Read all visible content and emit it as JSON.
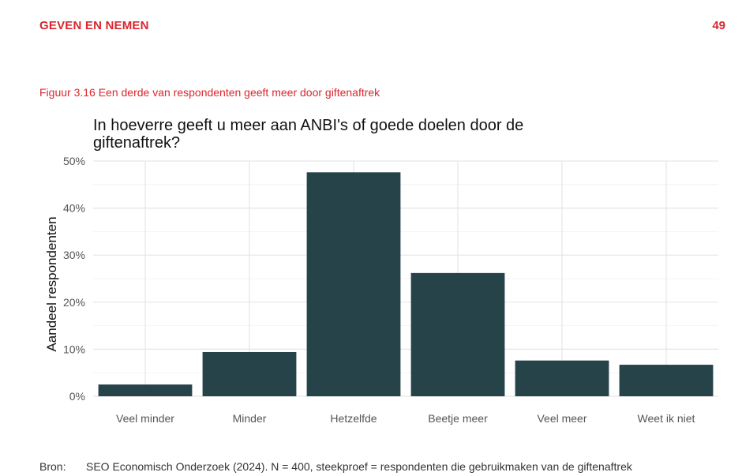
{
  "header": {
    "section_title": "GEVEN EN NEMEN",
    "page_number": "49"
  },
  "figure": {
    "caption": "Figuur 3.16  Een derde van respondenten geeft meer door giftenaftrek"
  },
  "source": {
    "label": "Bron:",
    "text": "SEO Economisch Onderzoek (2024). N = 400, steekproef = respondenten die gebruikmaken van de giftenaftrek"
  },
  "colors": {
    "accent": "#d9262e",
    "bar": "#26434a",
    "grid": "#e6e6e6"
  },
  "chart_data": {
    "type": "bar",
    "title": "In hoeverre geeft u meer aan ANBI's of goede doelen door de giftenaftrek?",
    "xlabel": "",
    "ylabel": "Aandeel respondenten",
    "categories": [
      "Veel minder",
      "Minder",
      "Hetzelfde",
      "Beetje meer",
      "Veel meer",
      "Weet ik niet"
    ],
    "values": [
      2.5,
      9.4,
      47.6,
      26.2,
      7.6,
      6.7
    ],
    "ylim": [
      0,
      50
    ],
    "yticks": [
      0,
      10,
      20,
      30,
      40,
      50
    ],
    "ytick_labels": [
      "0%",
      "10%",
      "20%",
      "30%",
      "40%",
      "50%"
    ],
    "grid": true,
    "legend": "none"
  }
}
